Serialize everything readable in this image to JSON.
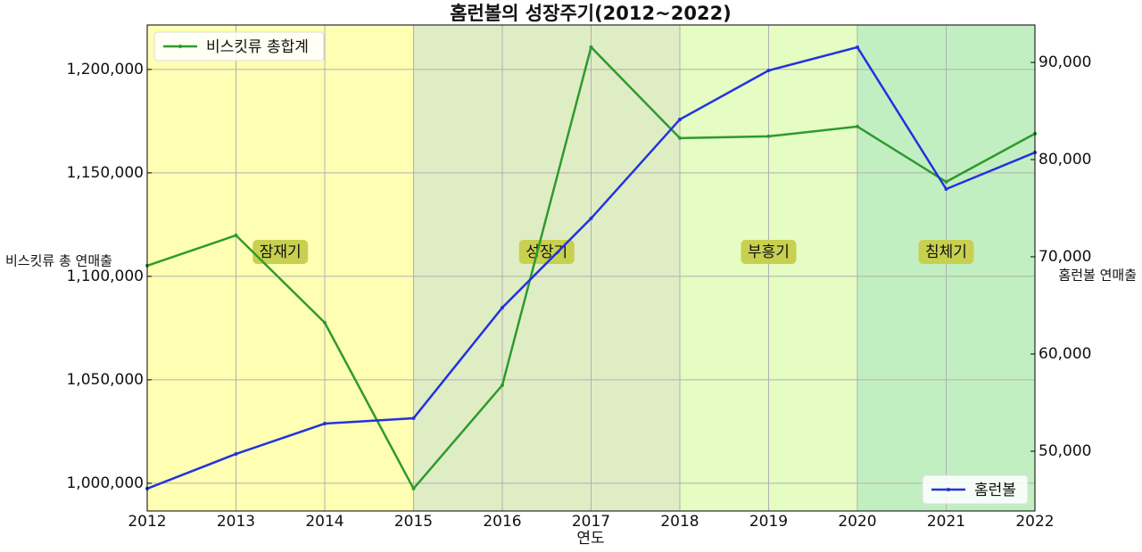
{
  "chart_data": {
    "type": "line",
    "title": "홈런볼의 성장주기(2012~2022)",
    "xlabel": "연도",
    "ylabel": "비스킷류 총 연매출",
    "y2label": "홈런볼 연매출",
    "x": [
      2012,
      2013,
      2014,
      2015,
      2016,
      2017,
      2018,
      2019,
      2020,
      2021,
      2022
    ],
    "xlim": [
      2012,
      2022
    ],
    "xticks": [
      2012,
      2013,
      2014,
      2015,
      2016,
      2017,
      2018,
      2019,
      2020,
      2021,
      2022
    ],
    "ylim": [
      986600,
      1221500
    ],
    "yticks": [
      {
        "value": 1000000,
        "label": "1,000,000"
      },
      {
        "value": 1050000,
        "label": "1,050,000"
      },
      {
        "value": 1100000,
        "label": "1,100,000"
      },
      {
        "value": 1150000,
        "label": "1,150,000"
      },
      {
        "value": 1200000,
        "label": "1,200,000"
      }
    ],
    "y2lim": [
      43850,
      93850
    ],
    "y2ticks": [
      {
        "value": 50000,
        "label": "50,000"
      },
      {
        "value": 60000,
        "label": "60,000"
      },
      {
        "value": 70000,
        "label": "70,000"
      },
      {
        "value": 80000,
        "label": "80,000"
      },
      {
        "value": 90000,
        "label": "90,000"
      }
    ],
    "grid": true,
    "series": [
      {
        "name": "비스킷류 총합계",
        "color": "#2e9a2e",
        "legend": "upper left",
        "values": [
          1105170,
          1119830,
          1077590,
          997410,
          1047410,
          1210780,
          1166810,
          1167670,
          1172410,
          1145690,
          1168970
        ]
      },
      {
        "name": "홈런볼",
        "color": "#2233dd",
        "axis": "y2",
        "legend": "lower right",
        "values": [
          46150,
          49720,
          52840,
          53390,
          64770,
          73950,
          84130,
          89170,
          91560,
          76970,
          80730
        ]
      }
    ],
    "phases": [
      {
        "label": "잠재기",
        "start": 2012,
        "end": 2015,
        "color": "#ffffb3"
      },
      {
        "label": "성장기",
        "start": 2015,
        "end": 2018,
        "color": "#dfedc5"
      },
      {
        "label": "부흥기",
        "start": 2018,
        "end": 2020,
        "color": "#e5fcc2"
      },
      {
        "label": "침체기",
        "start": 2020,
        "end": 2022,
        "color": "#c2efc2"
      }
    ]
  }
}
